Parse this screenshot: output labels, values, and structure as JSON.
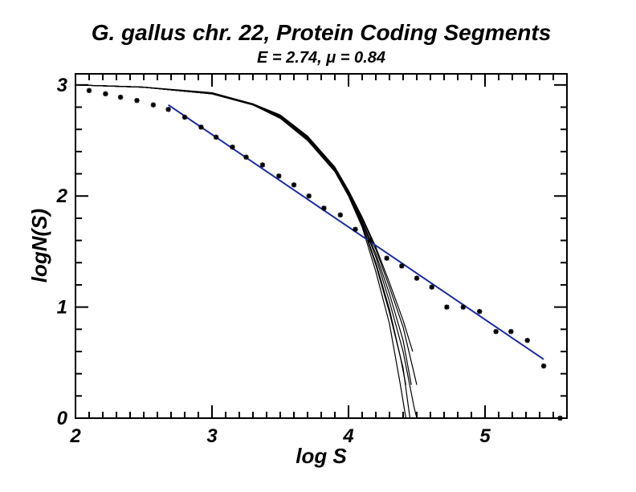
{
  "chart_data": {
    "type": "scatter",
    "title": "G. gallus chr. 22,  Protein Coding Segments",
    "subtitle": "E = 2.74, μ = 0.84",
    "xlabel": "log S",
    "ylabel": "logN(S)",
    "xlim": [
      2,
      5.6
    ],
    "ylim": [
      0,
      3.1
    ],
    "x_ticks": [
      2,
      3,
      4,
      5
    ],
    "y_ticks": [
      0,
      1,
      2,
      3
    ],
    "series": [
      {
        "kind": "points",
        "color": "#000000",
        "points": [
          [
            2.1,
            2.95
          ],
          [
            2.22,
            2.92
          ],
          [
            2.33,
            2.89
          ],
          [
            2.45,
            2.86
          ],
          [
            2.57,
            2.82
          ],
          [
            2.68,
            2.78
          ],
          [
            2.8,
            2.71
          ],
          [
            2.92,
            2.62
          ],
          [
            3.03,
            2.53
          ],
          [
            3.15,
            2.44
          ],
          [
            3.25,
            2.35
          ],
          [
            3.37,
            2.28
          ],
          [
            3.49,
            2.18
          ],
          [
            3.6,
            2.1
          ],
          [
            3.71,
            2.0
          ],
          [
            3.82,
            1.89
          ],
          [
            3.94,
            1.83
          ],
          [
            4.05,
            1.7
          ],
          [
            4.16,
            1.6
          ],
          [
            4.28,
            1.44
          ],
          [
            4.39,
            1.37
          ],
          [
            4.5,
            1.26
          ],
          [
            4.61,
            1.18
          ],
          [
            4.72,
            1.0
          ],
          [
            4.84,
            1.0
          ],
          [
            4.96,
            0.96
          ],
          [
            5.08,
            0.78
          ],
          [
            5.19,
            0.78
          ],
          [
            5.31,
            0.7
          ],
          [
            5.43,
            0.47
          ],
          [
            5.55,
            0.0
          ]
        ]
      },
      {
        "kind": "fit-line",
        "color": "#1a2aa0",
        "points": [
          [
            2.68,
            2.82
          ],
          [
            5.43,
            0.53
          ]
        ]
      },
      {
        "kind": "model-curves",
        "color": "#000000",
        "curves": [
          [
            [
              2.0,
              3.0
            ],
            [
              2.5,
              2.98
            ],
            [
              3.0,
              2.92
            ],
            [
              3.3,
              2.82
            ],
            [
              3.5,
              2.7
            ],
            [
              3.7,
              2.5
            ],
            [
              3.9,
              2.22
            ],
            [
              4.0,
              2.0
            ],
            [
              4.1,
              1.72
            ],
            [
              4.2,
              1.32
            ],
            [
              4.3,
              0.85
            ],
            [
              4.38,
              0.3
            ],
            [
              4.42,
              0.0
            ]
          ],
          [
            [
              2.0,
              3.0
            ],
            [
              2.5,
              2.98
            ],
            [
              3.0,
              2.92
            ],
            [
              3.3,
              2.82
            ],
            [
              3.5,
              2.71
            ],
            [
              3.7,
              2.51
            ],
            [
              3.9,
              2.23
            ],
            [
              4.0,
              2.01
            ],
            [
              4.1,
              1.74
            ],
            [
              4.2,
              1.38
            ],
            [
              4.3,
              0.95
            ],
            [
              4.4,
              0.45
            ],
            [
              4.45,
              0.0
            ]
          ],
          [
            [
              2.0,
              3.0
            ],
            [
              2.5,
              2.98
            ],
            [
              3.0,
              2.92
            ],
            [
              3.3,
              2.82
            ],
            [
              3.5,
              2.71
            ],
            [
              3.7,
              2.52
            ],
            [
              3.9,
              2.24
            ],
            [
              4.0,
              2.03
            ],
            [
              4.1,
              1.77
            ],
            [
              4.2,
              1.45
            ],
            [
              4.3,
              1.05
            ],
            [
              4.4,
              0.6
            ],
            [
              4.48,
              0.1
            ],
            [
              4.5,
              0.0
            ]
          ],
          [
            [
              2.0,
              3.0
            ],
            [
              2.5,
              2.98
            ],
            [
              3.0,
              2.92
            ],
            [
              3.3,
              2.83
            ],
            [
              3.5,
              2.72
            ],
            [
              3.7,
              2.53
            ],
            [
              3.9,
              2.25
            ],
            [
              4.0,
              2.04
            ],
            [
              4.1,
              1.8
            ],
            [
              4.2,
              1.52
            ],
            [
              4.3,
              1.18
            ],
            [
              4.4,
              0.82
            ],
            [
              4.5,
              0.3
            ]
          ],
          [
            [
              2.0,
              3.0
            ],
            [
              2.5,
              2.98
            ],
            [
              3.0,
              2.92
            ],
            [
              3.3,
              2.83
            ],
            [
              3.5,
              2.72
            ],
            [
              3.7,
              2.53
            ],
            [
              3.9,
              2.25
            ],
            [
              4.0,
              2.04
            ],
            [
              4.1,
              1.78
            ],
            [
              4.2,
              1.48
            ],
            [
              4.3,
              1.12
            ],
            [
              4.4,
              0.7
            ],
            [
              4.46,
              0.3
            ]
          ],
          [
            [
              2.0,
              3.0
            ],
            [
              2.5,
              2.98
            ],
            [
              3.0,
              2.92
            ],
            [
              3.3,
              2.82
            ],
            [
              3.5,
              2.71
            ],
            [
              3.7,
              2.51
            ],
            [
              3.9,
              2.23
            ],
            [
              4.0,
              2.02
            ],
            [
              4.1,
              1.75
            ],
            [
              4.2,
              1.4
            ],
            [
              4.3,
              0.98
            ],
            [
              4.38,
              0.55
            ],
            [
              4.42,
              0.3
            ]
          ],
          [
            [
              2.0,
              3.0
            ],
            [
              2.5,
              2.98
            ],
            [
              3.0,
              2.93
            ],
            [
              3.3,
              2.83
            ],
            [
              3.5,
              2.73
            ],
            [
              3.7,
              2.54
            ],
            [
              3.9,
              2.26
            ],
            [
              4.0,
              2.05
            ],
            [
              4.1,
              1.81
            ],
            [
              4.2,
              1.54
            ],
            [
              4.3,
              1.22
            ],
            [
              4.4,
              0.88
            ],
            [
              4.47,
              0.6
            ]
          ]
        ]
      }
    ]
  }
}
